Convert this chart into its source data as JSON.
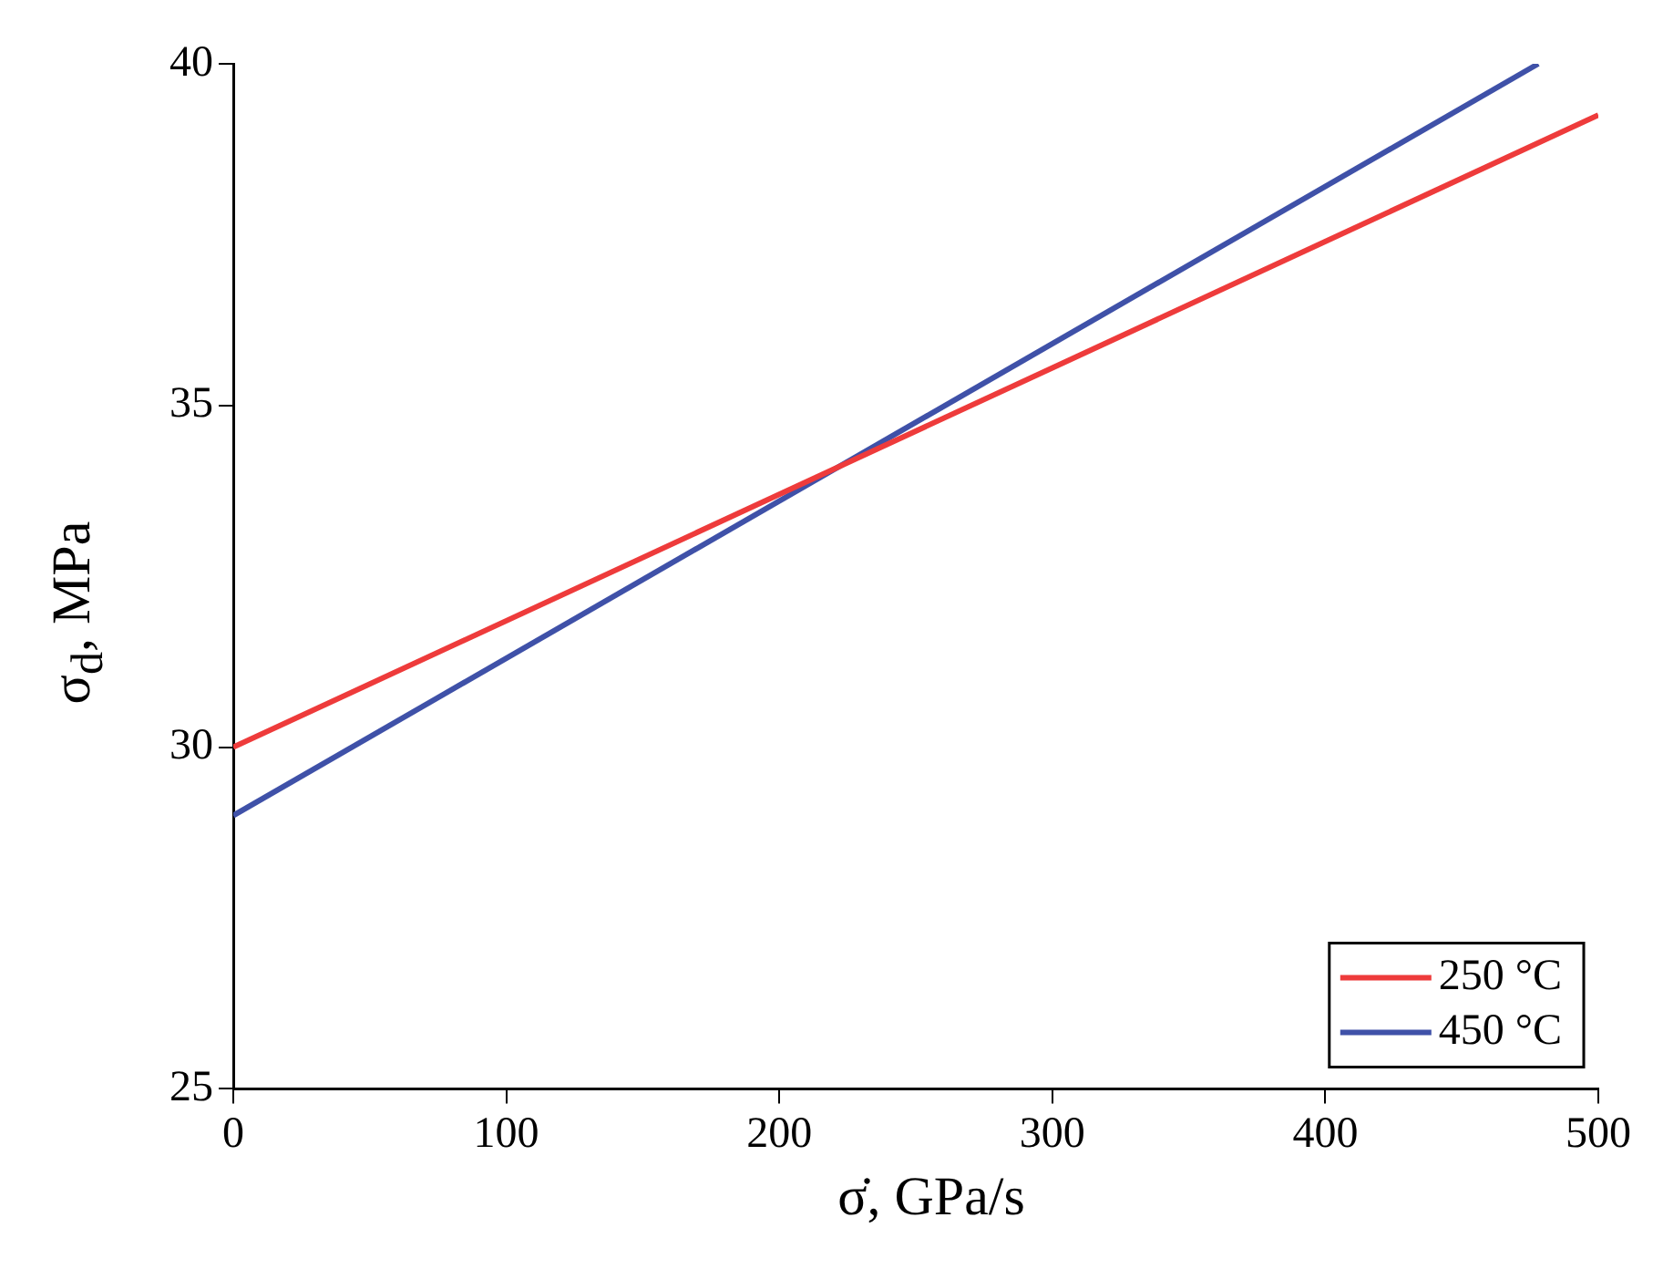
{
  "chart_data": {
    "type": "line",
    "xlabel": "σ̇, GPa/s",
    "ylabel": "σ$_{d}$, MPa",
    "xlim": [
      0,
      500
    ],
    "xticks": [
      0,
      100,
      200,
      300,
      400,
      500
    ],
    "ylim": [
      25,
      40
    ],
    "yticks": [
      25,
      30,
      35,
      40
    ],
    "grid": false,
    "legend": "bottom right",
    "marker": "none",
    "line_style": "solid",
    "series": [
      {
        "name": "250 °C",
        "color": "#ee3b3b",
        "x": [
          0,
          500
        ],
        "values": [
          30,
          39.25
        ]
      },
      {
        "name": "450 °C",
        "color": "#3f51a8",
        "x": [
          0,
          478
        ],
        "values": [
          29,
          40
        ]
      }
    ]
  }
}
